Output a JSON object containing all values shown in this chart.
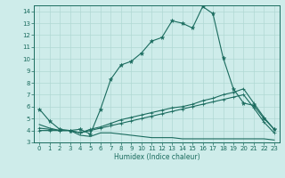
{
  "title": "",
  "xlabel": "Humidex (Indice chaleur)",
  "bg_color": "#ceecea",
  "grid_color": "#b0d8d4",
  "line_color": "#1a6b5e",
  "xlim": [
    -0.5,
    23.5
  ],
  "ylim": [
    3,
    14.5
  ],
  "xticks": [
    0,
    1,
    2,
    3,
    4,
    5,
    6,
    7,
    8,
    9,
    10,
    11,
    12,
    13,
    14,
    15,
    16,
    17,
    18,
    19,
    20,
    21,
    22,
    23
  ],
  "yticks": [
    3,
    4,
    5,
    6,
    7,
    8,
    9,
    10,
    11,
    12,
    13,
    14
  ],
  "series1_x": [
    0,
    1,
    2,
    3,
    4,
    5,
    6,
    7,
    8,
    9,
    10,
    11,
    12,
    13,
    14,
    15,
    16,
    17,
    18,
    19,
    20,
    21,
    22,
    23
  ],
  "series1_y": [
    5.8,
    4.8,
    4.1,
    4.0,
    4.1,
    3.7,
    5.8,
    8.3,
    9.5,
    9.8,
    10.5,
    11.5,
    11.8,
    13.2,
    13.0,
    12.6,
    14.4,
    13.8,
    10.1,
    7.5,
    6.3,
    6.1,
    5.0,
    4.1
  ],
  "series2_x": [
    0,
    1,
    2,
    3,
    4,
    5,
    6,
    7,
    8,
    9,
    10,
    11,
    12,
    13,
    14,
    15,
    16,
    17,
    18,
    19,
    20,
    21,
    22,
    23
  ],
  "series2_y": [
    4.2,
    4.1,
    4.0,
    4.0,
    3.8,
    4.1,
    4.3,
    4.6,
    4.9,
    5.1,
    5.3,
    5.5,
    5.7,
    5.9,
    6.0,
    6.2,
    6.5,
    6.7,
    7.0,
    7.2,
    7.5,
    6.3,
    5.1,
    4.1
  ],
  "series3_x": [
    0,
    1,
    2,
    3,
    4,
    5,
    6,
    7,
    8,
    9,
    10,
    11,
    12,
    13,
    14,
    15,
    16,
    17,
    18,
    19,
    20,
    21,
    22,
    23
  ],
  "series3_y": [
    4.0,
    4.0,
    4.0,
    4.0,
    3.8,
    4.0,
    4.2,
    4.4,
    4.6,
    4.8,
    5.0,
    5.2,
    5.4,
    5.6,
    5.8,
    6.0,
    6.2,
    6.4,
    6.6,
    6.8,
    7.0,
    5.9,
    4.7,
    3.8
  ],
  "series4_x": [
    0,
    1,
    2,
    3,
    4,
    5,
    6,
    7,
    8,
    9,
    10,
    11,
    12,
    13,
    14,
    15,
    16,
    17,
    18,
    19,
    20,
    21,
    22,
    23
  ],
  "series4_y": [
    4.5,
    4.2,
    4.0,
    4.0,
    3.6,
    3.5,
    3.8,
    3.8,
    3.7,
    3.6,
    3.5,
    3.4,
    3.4,
    3.4,
    3.3,
    3.3,
    3.3,
    3.3,
    3.3,
    3.3,
    3.3,
    3.3,
    3.3,
    3.2
  ],
  "tick_fontsize": 5.0,
  "xlabel_fontsize": 5.5,
  "marker_size": 3.5
}
